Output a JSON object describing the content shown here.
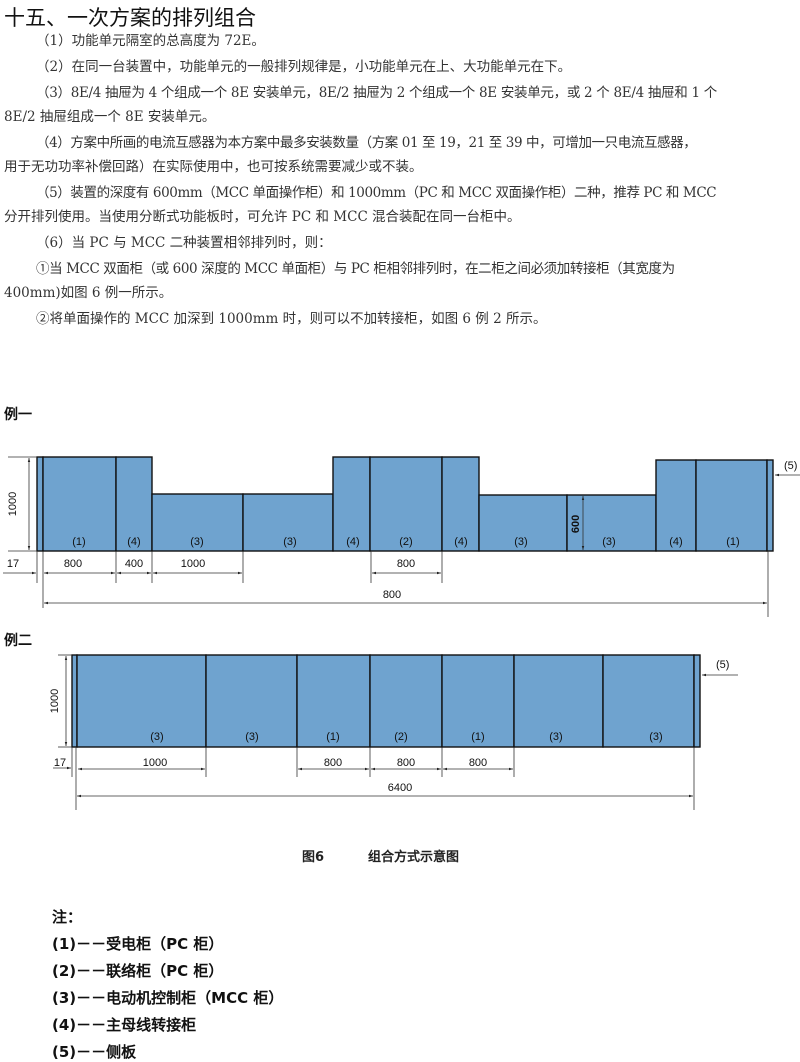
{
  "title": "十五、一次方案的排列组合",
  "paragraphs": [
    "（1）功能单元隔室的总高度为 72E。",
    "（2）在同一台装置中，功能单元的一般排列规律是，小功能单元在上、大功能单元在下。",
    "（3）8E/4 抽屉为 4 个组成一个 8E 安装单元，8E/2 抽屉为 2 个组成一个 8E 安装单元，或 2 个 8E/4 抽屉和 1 个",
    "8E/2 抽屉组成一个 8E 安装单元。",
    "（4）方案中所画的电流互感器为本方案中最多安装数量（方案 01 至 19，21 至 39 中，可增加一只电流互感器，",
    "用于无功功率补偿回路）在实际使用中，也可按系统需要减少或不装。",
    "（5）装置的深度有 600mm（MCC 单面操作柜）和 1000mm（PC 和 MCC 双面操作柜）二种，推荐 PC 和 MCC",
    "分开排列使用。当使用分断式功能板时，可允许 PC 和 MCC 混合装配在同一台柜中。",
    "（6）当 PC 与 MCC 二种装置相邻排列时，则：",
    "①当 MCC 双面柜（或 600 深度的 MCC 单面柜）与 PC 柜相邻排列时，在二柜之间必须加转接柜（其宽度为",
    "400mm)如图 6 例一所示。",
    "②将单面操作的 MCC 加深到 1000mm 时，则可以不加转接柜，如图 6 例 2 所示。"
  ],
  "example1": {
    "label": "例一",
    "cabinets": [
      "(1)",
      "(4)",
      "(3)",
      "(3)",
      "(4)",
      "(2)",
      "(4)",
      "(3)",
      "(3)",
      "(4)",
      "(1)"
    ],
    "dims": [
      "800",
      "400",
      "1000",
      "800"
    ],
    "total": "800",
    "height": "1000",
    "side_offset": "17",
    "inner_height": "600",
    "side_panel": "(5)"
  },
  "example2": {
    "label": "例二",
    "cabinets": [
      "(3)",
      "(3)",
      "(1)",
      "(2)",
      "(1)",
      "(3)",
      "(3)"
    ],
    "dims": [
      "1000",
      "800",
      "800",
      "800"
    ],
    "total": "6400",
    "height": "1000",
    "side_offset": "17",
    "side_panel": "(5)"
  },
  "caption": {
    "figure": "图6",
    "text": "组合方式示意图"
  },
  "notes": {
    "heading": "注：",
    "items": [
      "(1)－－受电柜（PC 柜）",
      "(2)－－联络柜（PC 柜）",
      "(3)－－电动机控制柜（MCC 柜）",
      "(4)－－主母线转接柜",
      "(5)－－侧板"
    ]
  },
  "colors": {
    "cabinet_fill": "#6fa3cf"
  }
}
